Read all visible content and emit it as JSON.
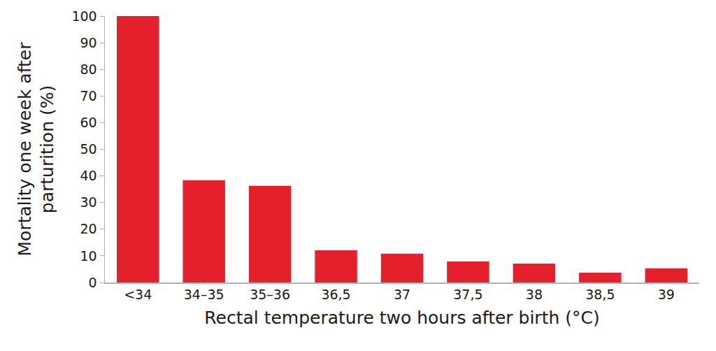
{
  "chart_data": {
    "type": "bar",
    "x_label": "Rectal temperature two hours after birth (°C)",
    "y_label": "Mortality one week after parturition (%)",
    "categories": [
      "<34",
      "34–35",
      "35–36",
      "36,5",
      "37",
      "37,5",
      "38",
      "38,5",
      "39"
    ],
    "values": [
      100,
      38.4,
      36.3,
      12.1,
      10.8,
      7.9,
      7.1,
      3.7,
      5.3
    ],
    "color": "#e3202c",
    "ylim": [
      0,
      100
    ],
    "yticks": [
      0,
      10,
      20,
      30,
      40,
      50,
      60,
      70,
      80,
      90,
      100
    ],
    "grid": false
  }
}
